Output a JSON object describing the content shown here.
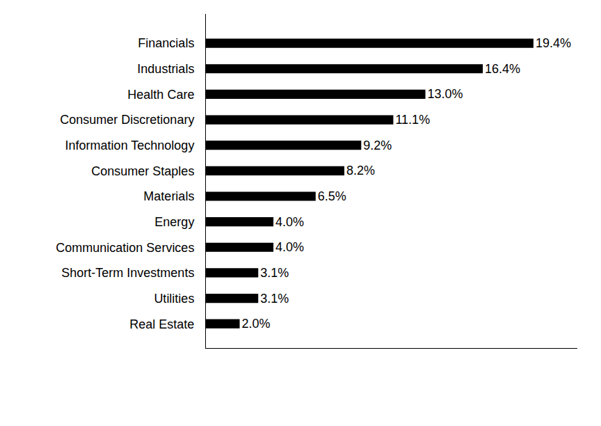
{
  "chart_data": {
    "type": "bar",
    "orientation": "horizontal",
    "categories": [
      "Financials",
      "Industrials",
      "Health Care",
      "Consumer Discretionary",
      "Information Technology",
      "Consumer Staples",
      "Materials",
      "Energy",
      "Communication Services",
      "Short-Term Investments",
      "Utilities",
      "Real Estate"
    ],
    "values": [
      19.4,
      16.4,
      13.0,
      11.1,
      9.2,
      8.2,
      6.5,
      4.0,
      4.0,
      3.1,
      3.1,
      2.0
    ],
    "value_labels": [
      "19.4%",
      "16.4%",
      "13.0%",
      "11.1%",
      "9.2%",
      "8.2%",
      "6.5%",
      "4.0%",
      "4.0%",
      "3.1%",
      "3.1%",
      "2.0%"
    ],
    "color": "#000000",
    "xlim": [
      0,
      22
    ],
    "grid": false,
    "data_labels": true,
    "tick_labels": "y"
  }
}
